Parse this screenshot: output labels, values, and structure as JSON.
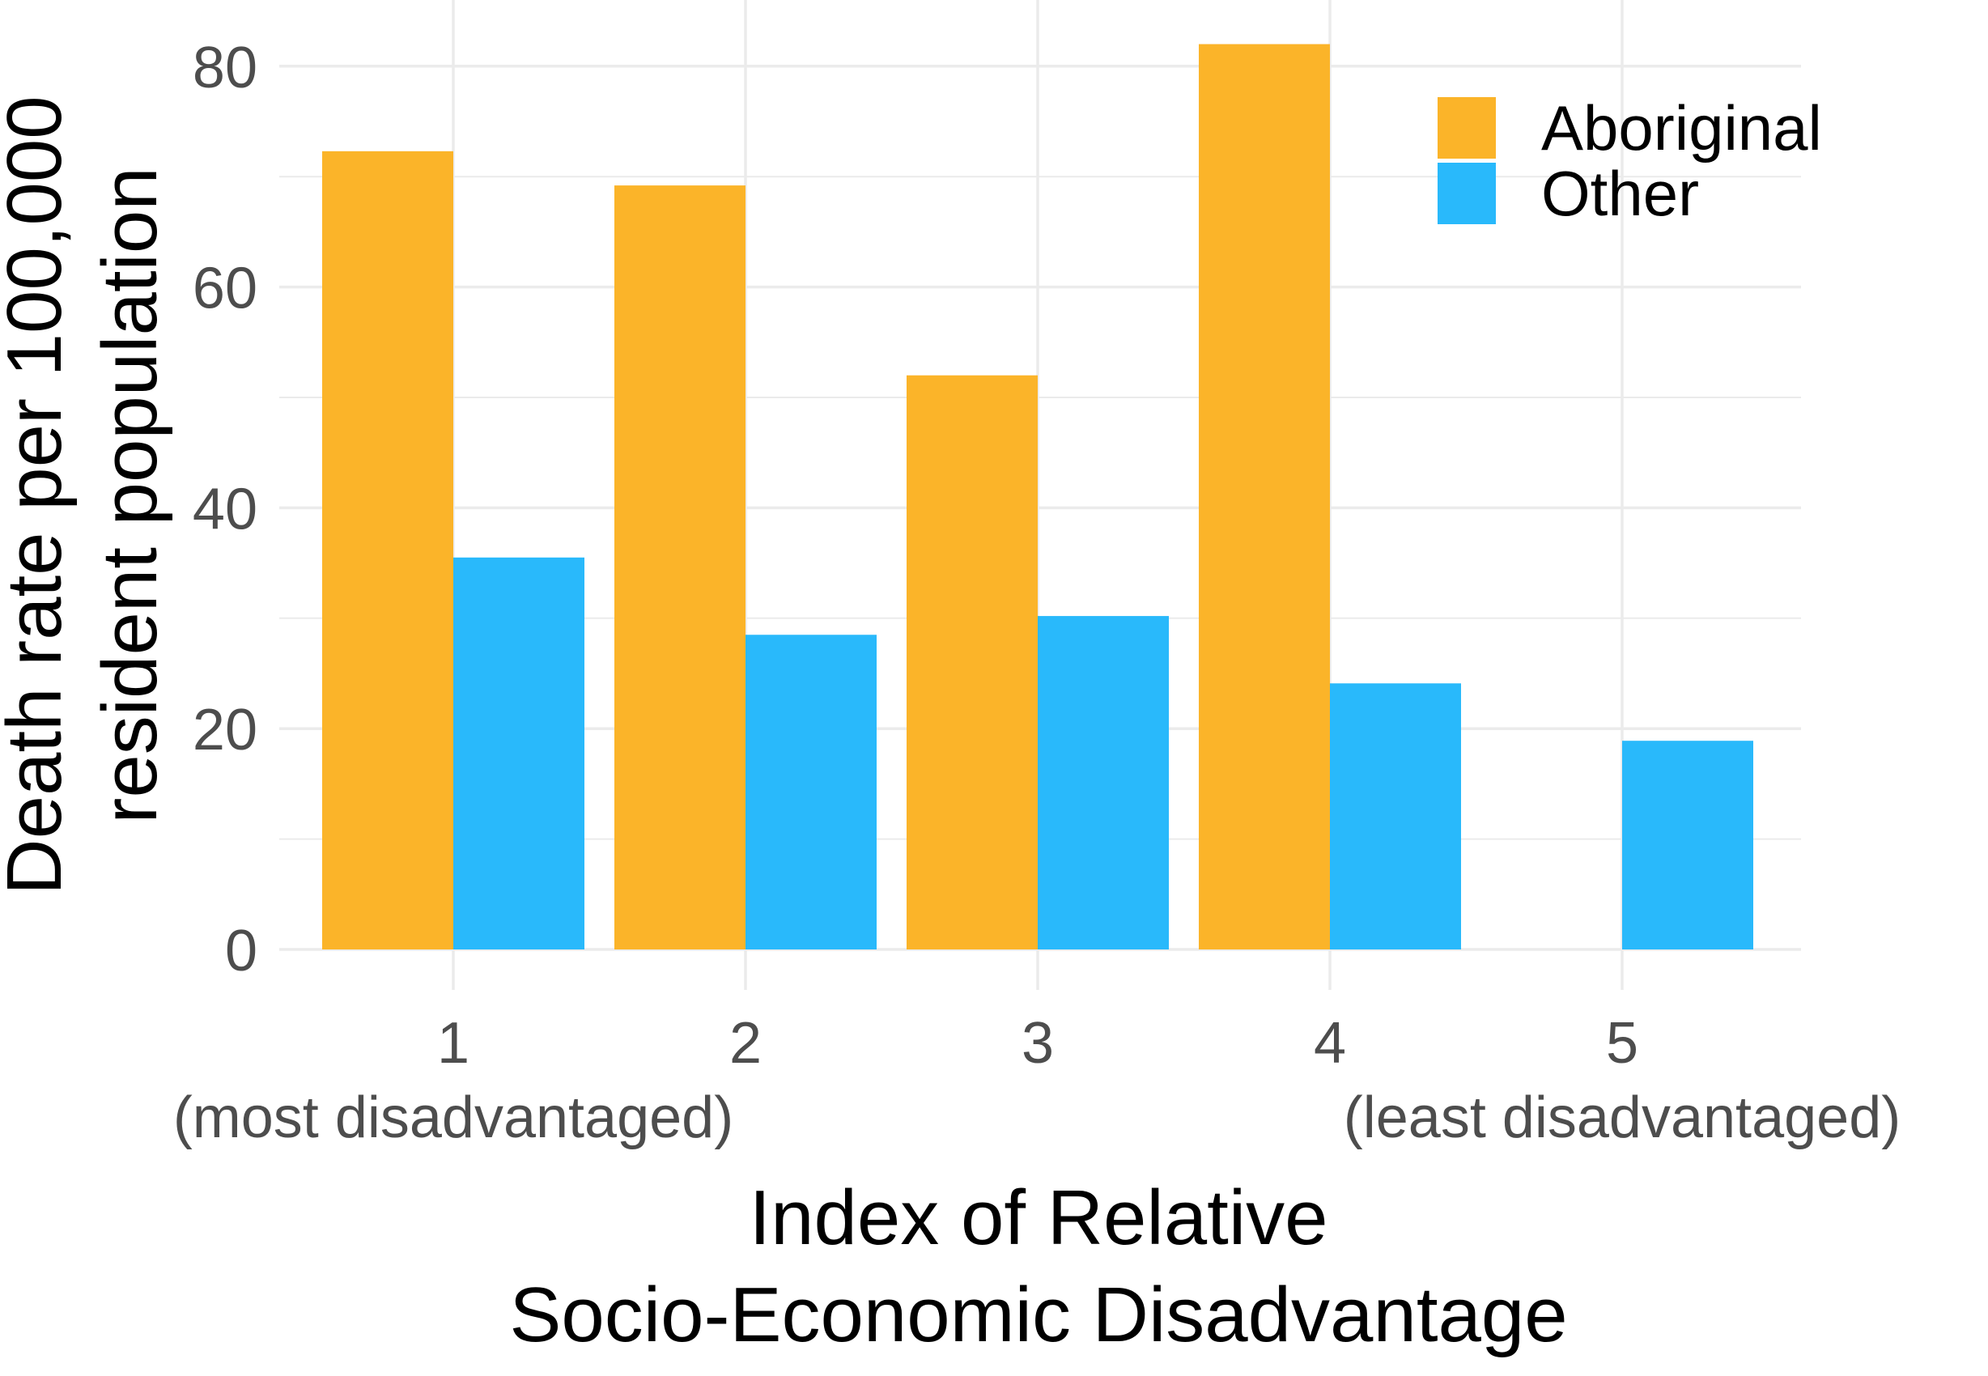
{
  "chart_data": {
    "type": "bar",
    "categories": [
      "1",
      "2",
      "3",
      "4",
      "5"
    ],
    "category_sublabels": [
      "(most disadvantaged)",
      "",
      "",
      "",
      "(least disadvantaged)"
    ],
    "series": [
      {
        "name": "Aboriginal",
        "color": "#FBB429",
        "values": [
          72.3,
          69.2,
          52.0,
          82.0,
          null
        ]
      },
      {
        "name": "Other",
        "color": "#29B9FB",
        "values": [
          35.5,
          28.5,
          30.2,
          24.1,
          18.9
        ]
      }
    ],
    "xlabel": [
      "Index of Relative",
      "Socio-Economic Disadvantage"
    ],
    "ylabel": [
      "Death rate per 100,000",
      "resident population"
    ],
    "ylim": [
      0,
      84.5
    ],
    "yticks": [
      "0",
      "20",
      "40",
      "60",
      "80"
    ],
    "grid": true,
    "legend_position": "top-right"
  }
}
